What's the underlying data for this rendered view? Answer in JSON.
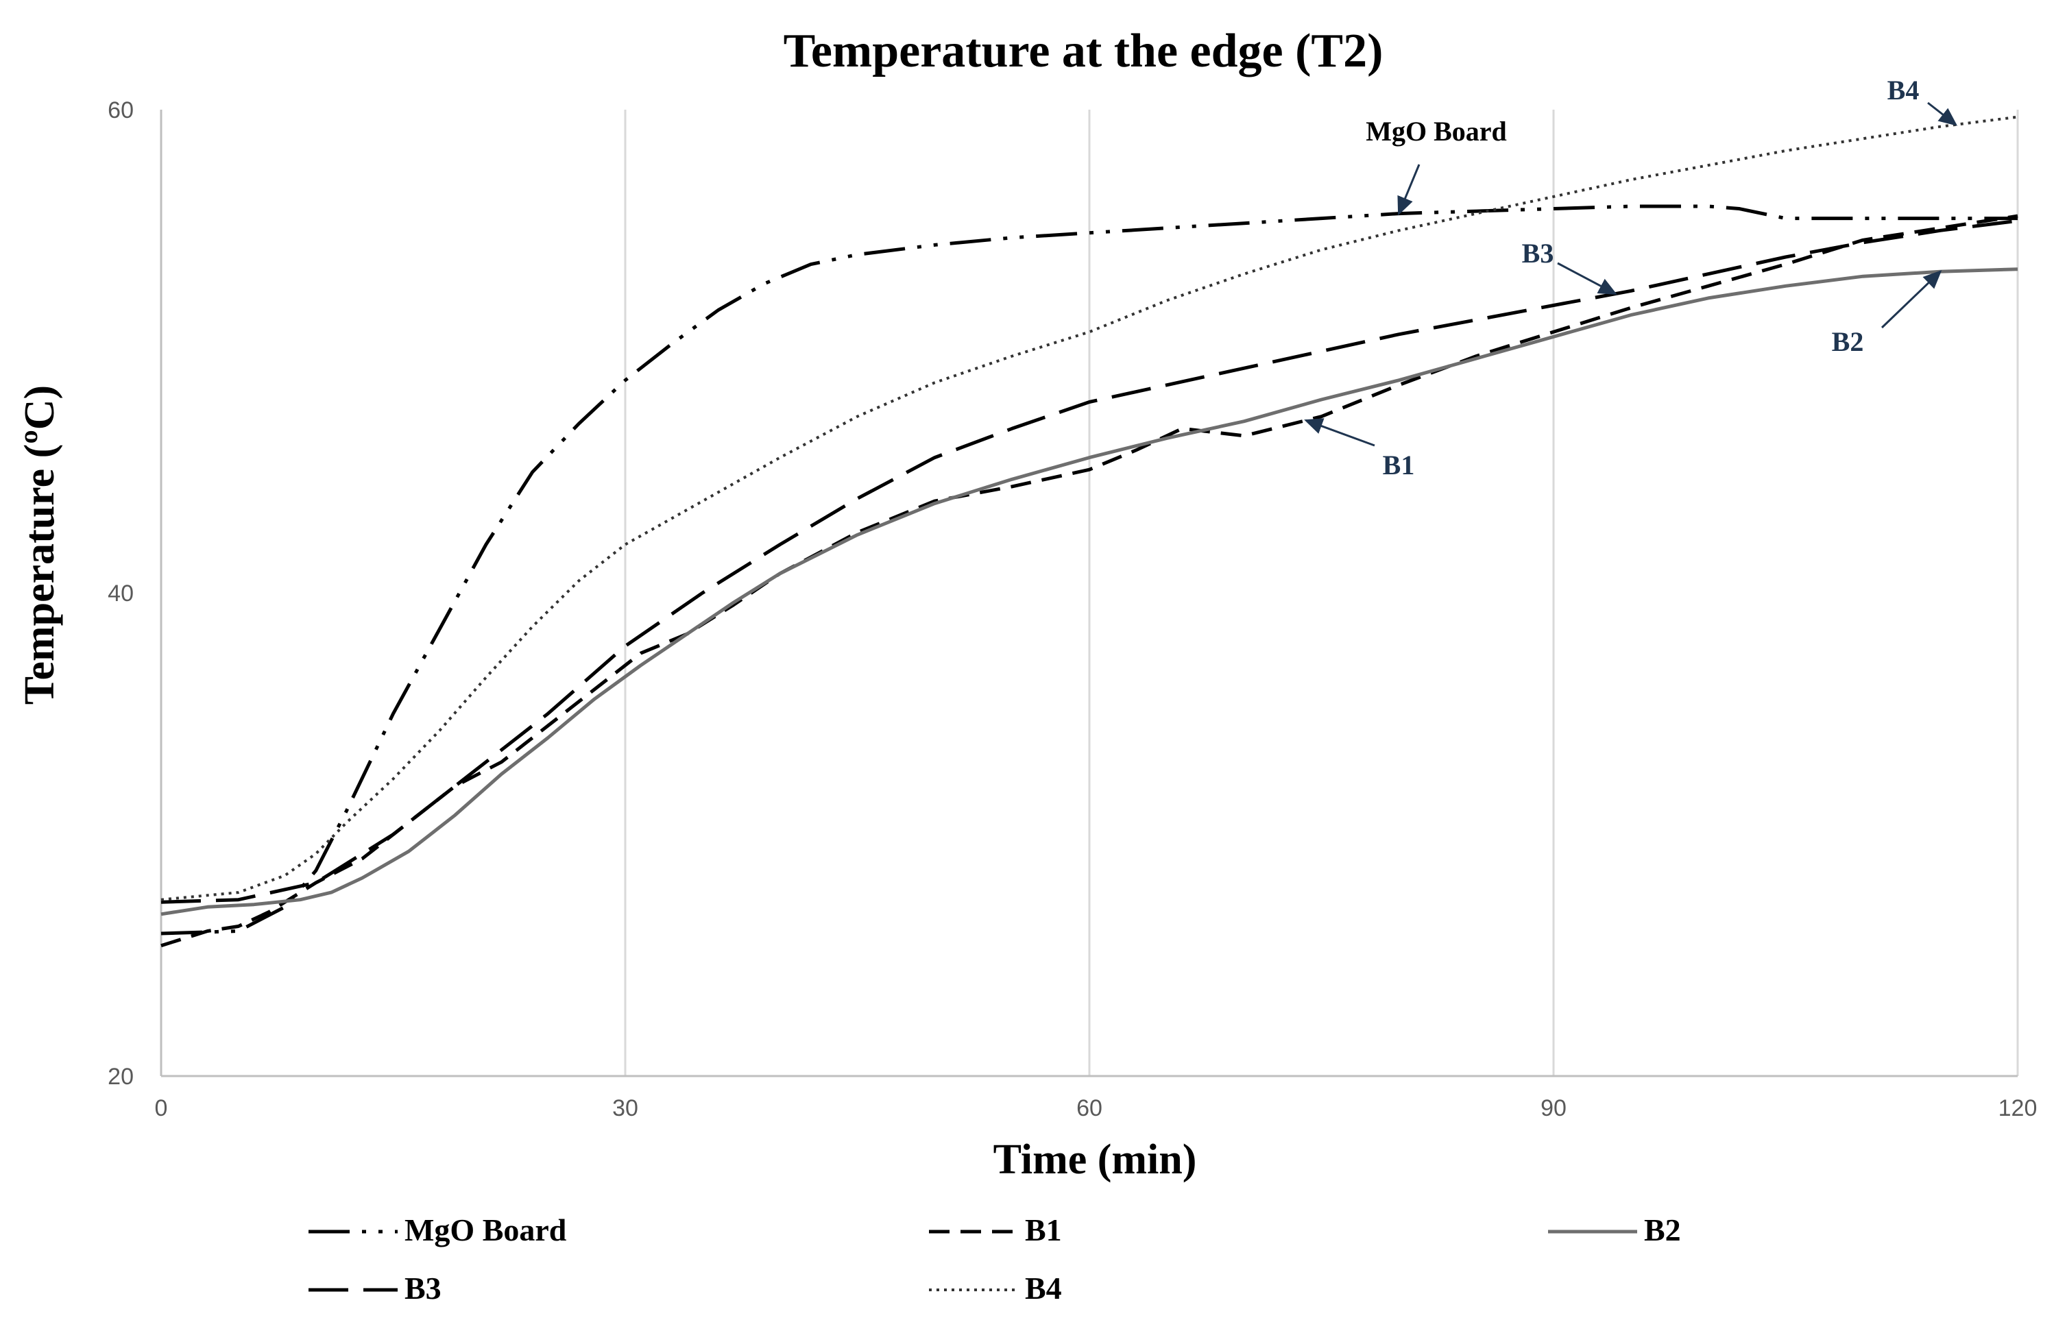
{
  "chart_data": {
    "type": "line",
    "title": "Temperature at the edge (T2)",
    "xlabel": "Time (min)",
    "ylabel": "Temperature (ºC)",
    "xlim": [
      0,
      120
    ],
    "ylim": [
      20,
      60
    ],
    "xticks": [
      0,
      30,
      60,
      90,
      120
    ],
    "yticks": [
      20,
      40,
      60
    ],
    "xtick_labels": [
      "0",
      "30",
      "60",
      "90",
      "120"
    ],
    "ytick_labels": [
      "20",
      "40",
      "60"
    ],
    "grid": "vertical",
    "legend_position": "bottom",
    "series": [
      {
        "name": "MgO Board",
        "style": "dash-dot-dot",
        "color": "#000000",
        "x": [
          0,
          5,
          8,
          10,
          12,
          15,
          18,
          21,
          24,
          27,
          30,
          33,
          36,
          39,
          42,
          45,
          50,
          55,
          60,
          65,
          70,
          75,
          80,
          85,
          90,
          95,
          100,
          102,
          105,
          110,
          115,
          120
        ],
        "values": [
          25.9,
          26.0,
          27.0,
          28.5,
          31.0,
          35.0,
          38.5,
          42.0,
          45.0,
          47.0,
          48.8,
          50.3,
          51.7,
          52.8,
          53.6,
          54.0,
          54.4,
          54.7,
          54.9,
          55.1,
          55.3,
          55.5,
          55.7,
          55.8,
          55.9,
          56.0,
          56.0,
          55.9,
          55.5,
          55.5,
          55.5,
          55.5
        ]
      },
      {
        "name": "B1",
        "style": "short-dash",
        "color": "#000000",
        "x": [
          0,
          3,
          5,
          7,
          10,
          13,
          16,
          19,
          22,
          25,
          28,
          31,
          34,
          37,
          40,
          45,
          50,
          55,
          60,
          63,
          66,
          70,
          75,
          80,
          85,
          90,
          95,
          100,
          105,
          110,
          115,
          120
        ],
        "values": [
          25.4,
          26.0,
          26.2,
          26.8,
          28.0,
          29.0,
          30.5,
          32.0,
          33.0,
          34.5,
          36.0,
          37.5,
          38.3,
          39.5,
          40.8,
          42.5,
          43.8,
          44.4,
          45.1,
          45.9,
          46.8,
          46.5,
          47.3,
          48.6,
          49.8,
          50.8,
          51.8,
          52.7,
          53.6,
          54.6,
          55.1,
          55.6
        ]
      },
      {
        "name": "B2",
        "style": "solid",
        "color": "#6e6e6e",
        "x": [
          0,
          3,
          6,
          9,
          11,
          13,
          16,
          19,
          22,
          25,
          28,
          31,
          34,
          37,
          40,
          45,
          50,
          55,
          60,
          65,
          70,
          75,
          80,
          85,
          90,
          95,
          100,
          105,
          110,
          115,
          120
        ],
        "values": [
          26.7,
          27.0,
          27.1,
          27.3,
          27.6,
          28.2,
          29.3,
          30.8,
          32.5,
          34.0,
          35.6,
          37.0,
          38.3,
          39.6,
          40.8,
          42.4,
          43.7,
          44.7,
          45.6,
          46.4,
          47.1,
          48.0,
          48.8,
          49.7,
          50.6,
          51.5,
          52.2,
          52.7,
          53.1,
          53.3,
          53.4
        ]
      },
      {
        "name": "B3",
        "style": "long-dash",
        "color": "#000000",
        "x": [
          0,
          5,
          10,
          15,
          20,
          25,
          30,
          35,
          40,
          45,
          50,
          55,
          60,
          65,
          70,
          75,
          80,
          85,
          90,
          95,
          100,
          105,
          110,
          115,
          120
        ],
        "values": [
          27.2,
          27.3,
          28.0,
          30.0,
          32.5,
          35.0,
          37.8,
          40.0,
          42.0,
          43.9,
          45.6,
          46.8,
          47.9,
          48.6,
          49.3,
          50.0,
          50.7,
          51.3,
          51.9,
          52.5,
          53.2,
          53.9,
          54.5,
          55.0,
          55.4
        ]
      },
      {
        "name": "B4",
        "style": "dotted",
        "color": "#333333",
        "x": [
          0,
          5,
          8,
          10,
          12,
          15,
          18,
          21,
          24,
          27,
          30,
          35,
          40,
          45,
          50,
          55,
          60,
          65,
          70,
          75,
          80,
          85,
          90,
          95,
          100,
          105,
          110,
          115,
          120
        ],
        "values": [
          27.3,
          27.6,
          28.3,
          29.2,
          30.5,
          32.3,
          34.3,
          36.5,
          38.6,
          40.5,
          42.0,
          43.8,
          45.6,
          47.3,
          48.7,
          49.8,
          50.8,
          52.1,
          53.2,
          54.2,
          55.0,
          55.7,
          56.4,
          57.1,
          57.7,
          58.3,
          58.8,
          59.3,
          59.7
        ]
      }
    ],
    "annotations": [
      {
        "text": "MgO Board",
        "series": "MgO Board",
        "color": "#000000"
      },
      {
        "text": "B4",
        "series": "B4",
        "color": "#1f3550"
      },
      {
        "text": "B3",
        "series": "B3",
        "color": "#1f3550"
      },
      {
        "text": "B2",
        "series": "B2",
        "color": "#1f3550"
      },
      {
        "text": "B1",
        "series": "B1",
        "color": "#1f3550"
      }
    ]
  }
}
